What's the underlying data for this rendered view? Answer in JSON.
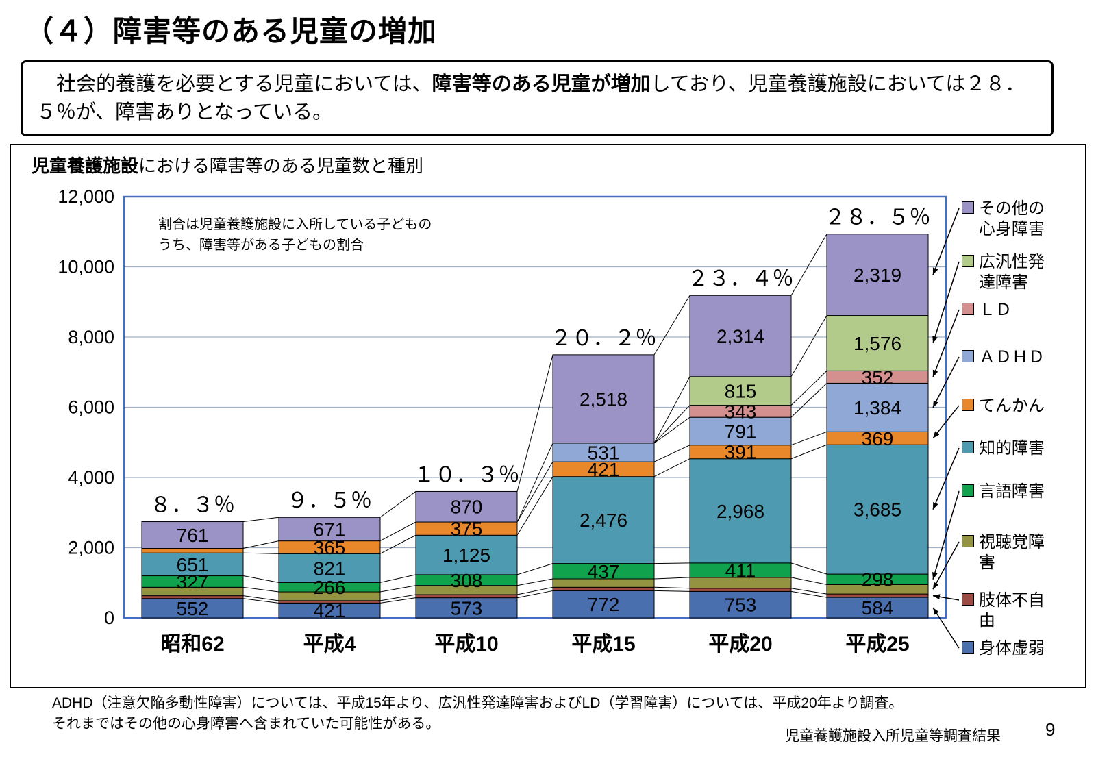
{
  "title": "（４）障害等のある児童の増加",
  "intro": {
    "pre": "　社会的養護を必要とする児童においては、",
    "bold": "障害等のある児童が増加",
    "post": "しており、児童養護施設においては２８．５％が、障害ありとなっている。"
  },
  "chart": {
    "title_bold": "児童養護施設",
    "title_rest": "における障害等のある児童数と種別"
  },
  "chart_data": {
    "type": "bar",
    "stacked": true,
    "title": "児童養護施設における障害等のある児童数と種別",
    "annotation": "割合は児童養護施設に入所している子どもの\nうち、障害等がある子どもの割合",
    "categories": [
      "昭和62",
      "平成4",
      "平成10",
      "平成15",
      "平成20",
      "平成25"
    ],
    "percent_labels": [
      "８．３％",
      "９．５％",
      "１０．３％",
      "２０．２％",
      "２３．４％",
      "２８．５％"
    ],
    "y_ticks": [
      "0",
      "2,000",
      "4,000",
      "6,000",
      "8,000",
      "10,000",
      "12,000"
    ],
    "ylim": [
      0,
      12000
    ],
    "grid_color": "#9fb0c8",
    "plot_border_color": "#4470c4",
    "legend_position": "right",
    "series": [
      {
        "name": "身体虚弱",
        "color": "#4a6fae",
        "values": [
          552,
          421,
          573,
          772,
          753,
          584
        ],
        "labels": [
          "552",
          "421",
          "573",
          "772",
          "753",
          "584"
        ],
        "legend_label": "身体虚弱"
      },
      {
        "name": "肢体不自由",
        "color": "#9d4a45",
        "values": [
          80,
          70,
          90,
          100,
          90,
          97
        ],
        "labels": [
          null,
          null,
          null,
          null,
          null,
          null
        ],
        "legend_label": "肢体不自\n由"
      },
      {
        "name": "視聴覚障害",
        "color": "#949342",
        "values": [
          240,
          250,
          260,
          240,
          310,
          268
        ],
        "labels": [
          null,
          null,
          null,
          null,
          null,
          null
        ],
        "legend_label": "視聴覚障\n害"
      },
      {
        "name": "言語障害",
        "color": "#10a24c",
        "values": [
          327,
          266,
          308,
          437,
          411,
          298
        ],
        "labels": [
          "327",
          "266",
          "308",
          "437",
          "411",
          "298"
        ],
        "legend_label": "言語障害"
      },
      {
        "name": "知的障害",
        "color": "#4e9ab0",
        "values": [
          651,
          821,
          1125,
          2476,
          2968,
          3685
        ],
        "labels": [
          "651",
          "821",
          "1,125",
          "2,476",
          "2,968",
          "3,685"
        ],
        "legend_label": "知的障害"
      },
      {
        "name": "てんかん",
        "color": "#e8882a",
        "values": [
          130,
          365,
          375,
          421,
          391,
          369
        ],
        "labels": [
          null,
          "365",
          "375",
          "421",
          "391",
          "369"
        ],
        "legend_label": "てんかん"
      },
      {
        "name": "ＡＤＨＤ",
        "color": "#8fa8d6",
        "values": [
          0,
          0,
          0,
          531,
          791,
          1384
        ],
        "labels": [
          null,
          null,
          null,
          "531",
          "791",
          "1,384"
        ],
        "legend_label": "ＡＤＨＤ"
      },
      {
        "name": "ＬＤ",
        "color": "#d4908f",
        "values": [
          0,
          0,
          0,
          0,
          343,
          352
        ],
        "labels": [
          null,
          null,
          null,
          null,
          "343",
          "352"
        ],
        "legend_label": "ＬＤ"
      },
      {
        "name": "広汎性発達障害",
        "color": "#b2ca8a",
        "values": [
          0,
          0,
          0,
          0,
          815,
          1576
        ],
        "labels": [
          null,
          null,
          null,
          null,
          "815",
          "1,576"
        ],
        "legend_label": "広汎性発\n達障害"
      },
      {
        "name": "その他の心身障害",
        "color": "#9b93c5",
        "values": [
          761,
          671,
          870,
          2518,
          2314,
          2319
        ],
        "labels": [
          "761",
          "671",
          "870",
          "2,518",
          "2,314",
          "2,319"
        ],
        "legend_label": "その他の\n心身障害"
      }
    ]
  },
  "footnote": {
    "line1": "ADHD（注意欠陥多動性障害）については、平成15年より、広汎性発達障害およびLD（学習障害）については、平成20年より調査。",
    "line2": "それまではその他の心身障害へ含まれていた可能性がある。"
  },
  "source": "児童養護施設入所児童等調査結果",
  "page_number": "9"
}
